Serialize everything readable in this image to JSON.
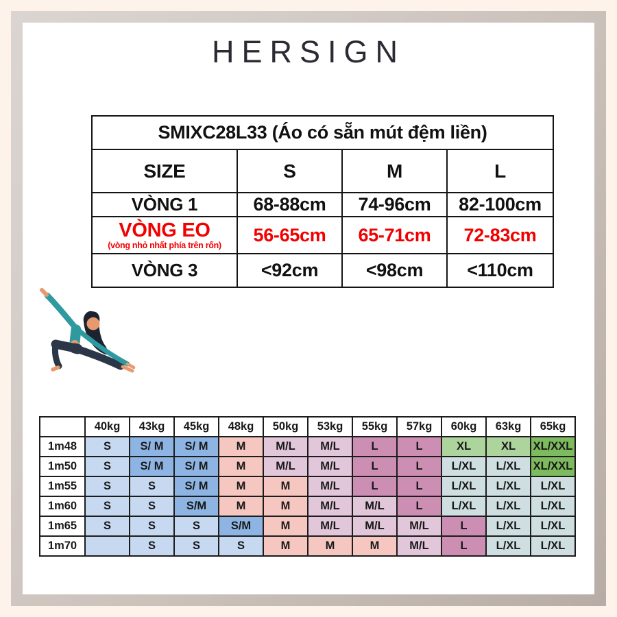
{
  "brand": {
    "logo_text": "HERSIGN"
  },
  "size_table": {
    "title": "SMIXC28L33 (Áo có sẵn mút đệm liền)",
    "header": [
      "SIZE",
      "S",
      "M",
      "L"
    ],
    "rows": [
      {
        "label": "VÒNG 1",
        "sublabel": "",
        "highlight": false,
        "values": [
          "68-88cm",
          "74-96cm",
          "82-100cm"
        ]
      },
      {
        "label": "VÒNG EO",
        "sublabel": "(vòng nhỏ nhất phía trên rốn)",
        "highlight": true,
        "values": [
          "56-65cm",
          "65-71cm",
          "72-83cm"
        ]
      },
      {
        "label": "VÒNG 3",
        "sublabel": "",
        "highlight": false,
        "values": [
          "<92cm",
          "<98cm",
          "<110cm"
        ]
      }
    ],
    "highlight_color": "#f20000"
  },
  "illustration": {
    "name": "yoga-pose-woman",
    "colors": {
      "top": "#2e9aa0",
      "skin": "#e89a6e",
      "leggings": "#2b3647",
      "hair": "#1c2330"
    }
  },
  "weight_table": {
    "corner_label": "",
    "columns": [
      "40kg",
      "43kg",
      "45kg",
      "48kg",
      "50kg",
      "53kg",
      "55kg",
      "57kg",
      "60kg",
      "63kg",
      "65kg"
    ],
    "rows": [
      {
        "label": "1m48",
        "cells": [
          "S",
          "S/ M",
          "S/ M",
          "M",
          "M/L",
          "M/L",
          "L",
          "L",
          "XL",
          "XL",
          "XL/XXL"
        ]
      },
      {
        "label": "1m50",
        "cells": [
          "S",
          "S/ M",
          "S/ M",
          "M",
          "M/L",
          "M/L",
          "L",
          "L",
          "L/XL",
          "L/XL",
          "XL/XXL"
        ]
      },
      {
        "label": "1m55",
        "cells": [
          "S",
          "S",
          "S/ M",
          "M",
          "M",
          "M/L",
          "L",
          "L",
          "L/XL",
          "L/XL",
          "L/XL"
        ]
      },
      {
        "label": "1m60",
        "cells": [
          "S",
          "S",
          "S/M",
          "M",
          "M",
          "M/L",
          "M/L",
          "L",
          "L/XL",
          "L/XL",
          "L/XL"
        ]
      },
      {
        "label": "1m65",
        "cells": [
          "S",
          "S",
          "S",
          "S/M",
          "M",
          "M/L",
          "M/L",
          "M/L",
          "L",
          "L/XL",
          "L/XL"
        ]
      },
      {
        "label": "1m70",
        "cells": [
          "",
          "S",
          "S",
          "S",
          "M",
          "M",
          "M",
          "M/L",
          "L",
          "L/XL",
          "L/XL"
        ]
      }
    ],
    "cell_colors": {
      "S": "#c6d9f1",
      "SM": "#8db4e3",
      "M": "#f5c7c0",
      "ML": "#e2c6d9",
      "L": "#cc8fb3",
      "XL": "#aed49e",
      "XLXXL": "#7eba5e",
      "LXL": "#cfdfe1",
      "EMPTY": "#c6d9f1"
    }
  },
  "frame": {
    "outer_bg": "#fdf3ea",
    "border_color": "#c4bab4",
    "panel_bg": "#ffffff"
  }
}
